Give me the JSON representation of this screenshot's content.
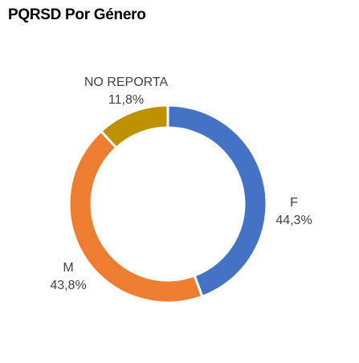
{
  "chart_data": {
    "type": "pie",
    "title": "PQRSD Por Género",
    "hole": true,
    "grid": false,
    "legend": "none",
    "categories": [
      "F",
      "M",
      "NO REPORTA"
    ],
    "values": [
      44.3,
      43.8,
      11.8
    ],
    "value_labels": [
      "44,3%",
      "43,8%",
      "11,8%"
    ],
    "colors": [
      "#4472C4",
      "#ED7D31",
      "#BF9000"
    ]
  }
}
